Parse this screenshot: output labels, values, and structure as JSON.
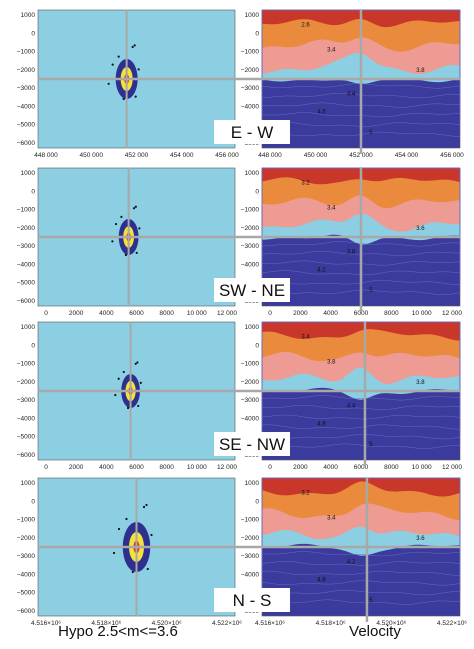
{
  "panels": [
    {
      "label": "E - W",
      "x_ticks": [
        "448 000",
        "450 000",
        "452 000",
        "454 000",
        "456 000"
      ],
      "y_ticks": [
        "1000",
        "0",
        "−1000",
        "−2000",
        "−3000",
        "−4000",
        "−5000",
        "−6000"
      ],
      "contour_labels": [
        "2.6",
        "3.4",
        "3.8",
        "4.4",
        "4.5",
        "5"
      ]
    },
    {
      "label": "SW - NE",
      "x_ticks": [
        "0",
        "2000",
        "4000",
        "6000",
        "8000",
        "10 000",
        "12 000"
      ],
      "y_ticks": [
        "1000",
        "0",
        "−1000",
        "−2000",
        "−3000",
        "−4000",
        "−5000",
        "−6000"
      ],
      "contour_labels": [
        "3.2",
        "3.4",
        "3.6",
        "3.8",
        "4.2",
        "5"
      ]
    },
    {
      "label": "SE - NW",
      "x_ticks": [
        "0",
        "2000",
        "4000",
        "6000",
        "8000",
        "10 000",
        "12 000"
      ],
      "y_ticks": [
        "1000",
        "0",
        "−1000",
        "−2000",
        "−3000",
        "−4000",
        "−5000",
        "−6000"
      ],
      "contour_labels": [
        "3.4",
        "3.8",
        "3.8",
        "4.4",
        "4.8",
        "5"
      ]
    },
    {
      "label": "N - S",
      "x_ticks": [
        "4.516×10⁶",
        "4.518×10⁶",
        "4.520×10⁶",
        "4.522×10⁶"
      ],
      "y_ticks": [
        "1000",
        "0",
        "−1000",
        "−2000",
        "−3000",
        "−4000",
        "−5000",
        "−6000"
      ],
      "contour_labels": [
        "3.2",
        "3.4",
        "3.6",
        "4.2",
        "4.8",
        "5"
      ]
    }
  ],
  "footer": {
    "left": "Hypo 2.5<m<=3.6",
    "right": "Velocity"
  }
}
